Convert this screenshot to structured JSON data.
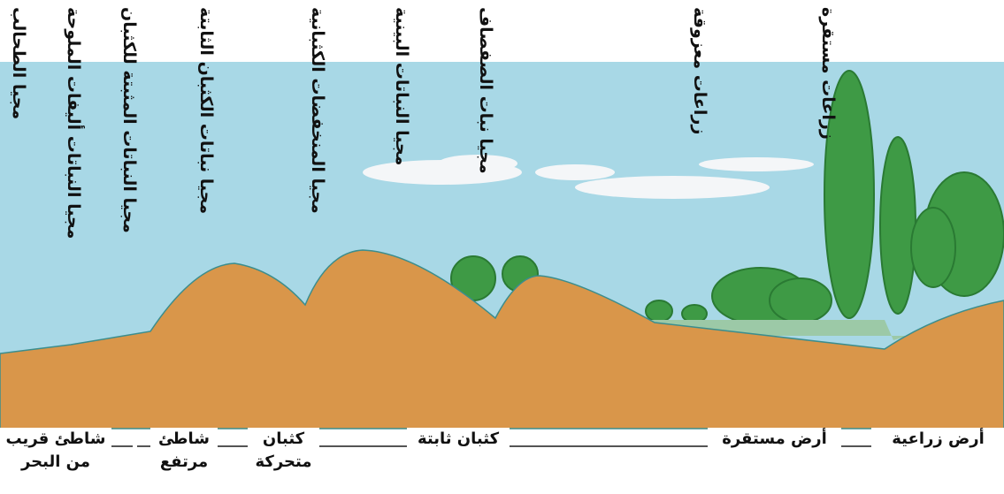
{
  "zone_labels": [
    "مجيا الطحالب",
    "مجيا النباتات أليفات الملوحة",
    "مجيا النباتات المثبتة للكثبان",
    "مجيا نباتات الكثبان الثابتة",
    "مجيا المنخفضات الكثبانية",
    "مجيا النباتات البينية",
    "مجيا نبات الصفصاف",
    "زراعات معزوقة",
    "زراعات مستقرة"
  ],
  "ground_labels": [
    "شاطئ قريب من البحر",
    "شاطئ مرتفع",
    "كثبان متحركة",
    "كثبان ثابتة",
    "أرض مستقرة",
    "أرض زراعية"
  ]
}
